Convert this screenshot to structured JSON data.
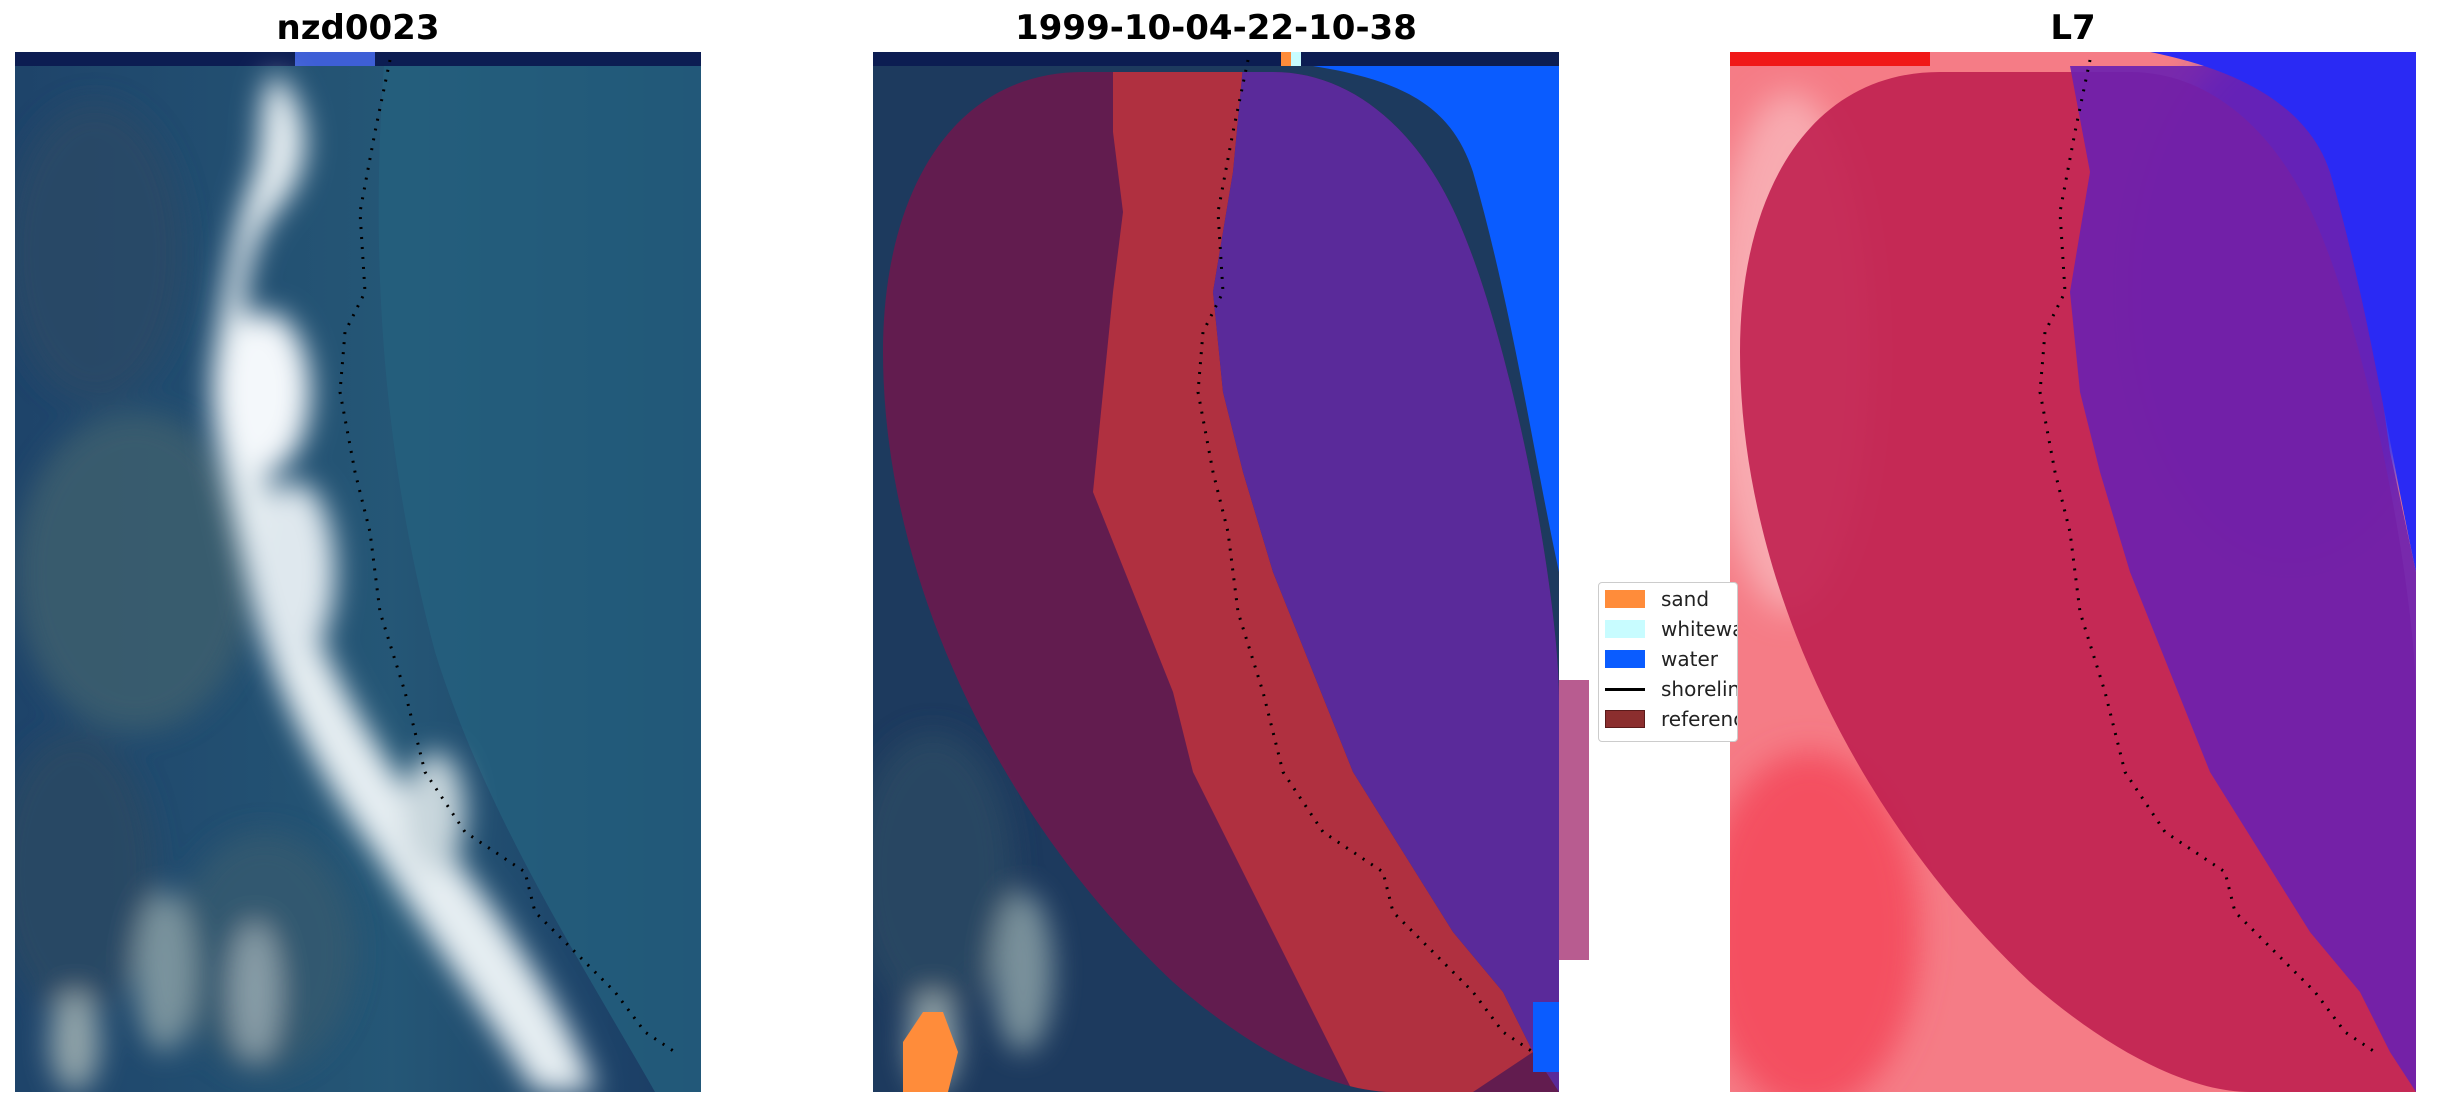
{
  "panels": {
    "rgb": {
      "title": "nzd0023"
    },
    "classified": {
      "title": "1999-10-04-22-10-38"
    },
    "index": {
      "title": "L7"
    }
  },
  "legend": {
    "items": [
      {
        "label": "sand",
        "color": "#ff8c3a",
        "kind": "patch"
      },
      {
        "label": "whitewater",
        "color": "#c8fcff",
        "kind": "patch"
      },
      {
        "label": "water",
        "color": "#0a5cff",
        "kind": "patch"
      },
      {
        "label": "shoreline",
        "color": "#000000",
        "kind": "line"
      },
      {
        "label": "reference",
        "color": "#8b2e2e",
        "kind": "patch"
      }
    ]
  },
  "colors": {
    "sand": "#ff8c3a",
    "whitewater": "#c8fcff",
    "water": "#0a5cff",
    "shoreline": "#000000",
    "reference_region": "#8b2e2e",
    "land_class": "#b03040",
    "water_class": "#5a2a9a",
    "index_land": "#d8345a",
    "index_water": "#3030f0"
  }
}
